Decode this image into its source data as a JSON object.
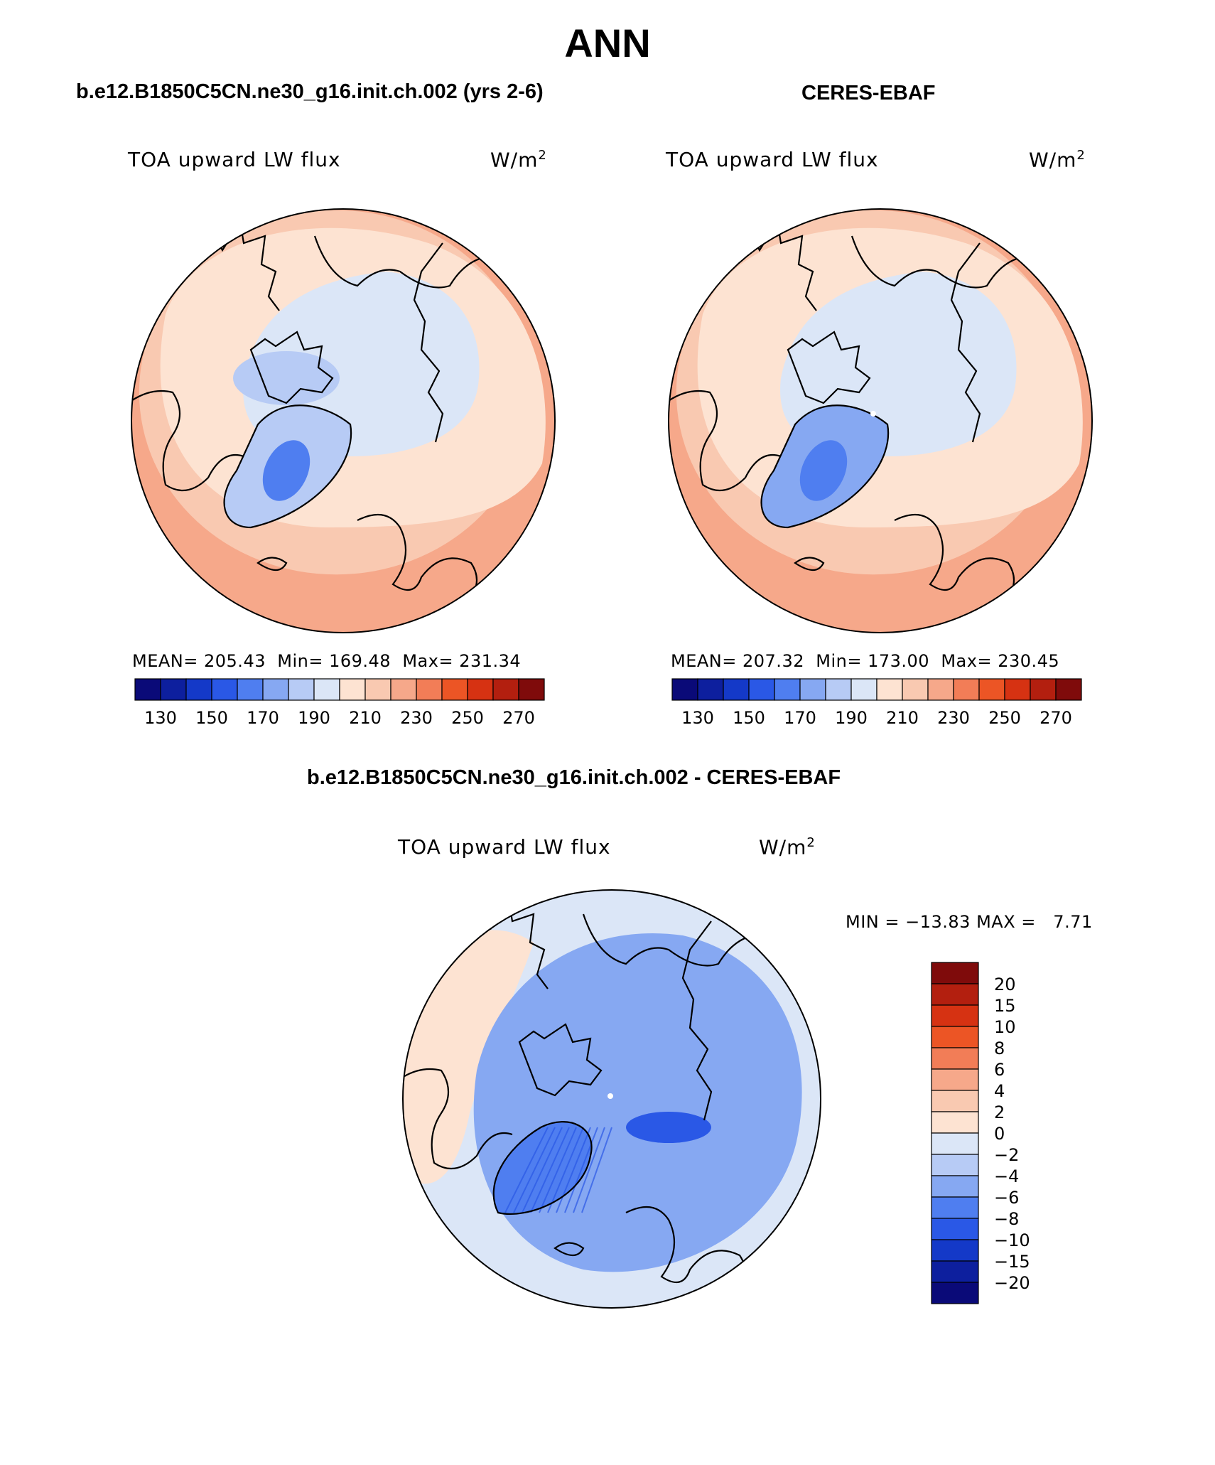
{
  "page": {
    "title": "ANN",
    "left_title": "b.e12.B1850C5CN.ne30_g16.init.ch.002 (yrs 2-6)",
    "right_title": "CERES-EBAF",
    "diff_title": "b.e12.B1850C5CN.ne30_g16.init.ch.002 - CERES-EBAF"
  },
  "colors": {
    "abs_scale": [
      "#0a0a78",
      "#0d1f9e",
      "#1439c8",
      "#2a58e6",
      "#4f7ef0",
      "#86a8f2",
      "#b7cbf5",
      "#dbe6f7",
      "#fde3d2",
      "#f9c9b1",
      "#f6a88a",
      "#f27d57",
      "#ec5525",
      "#d63212",
      "#b31f0f",
      "#7f0b0b"
    ],
    "diff_scale": [
      "#0a0a78",
      "#0d1f9e",
      "#1439c8",
      "#2a58e6",
      "#4f7ef0",
      "#86a8f2",
      "#b7cbf5",
      "#dbe6f7",
      "#fde3d2",
      "#f9c9b1",
      "#f6a88a",
      "#f27d57",
      "#ec5525",
      "#d63212",
      "#b31f0f",
      "#7f0b0b"
    ]
  },
  "chart_data": [
    {
      "type": "polar-contour-map",
      "id": "model",
      "label": "TOA upward LW flux",
      "units": "W/m",
      "units_sup": "2",
      "stats": {
        "mean_label": "MEAN=",
        "mean": "205.43",
        "min_label": "Min=",
        "min": "169.48",
        "max_label": "Max=",
        "max": "231.34"
      },
      "colorbar_ticks": [
        "130",
        "150",
        "170",
        "190",
        "210",
        "230",
        "250",
        "270"
      ],
      "regions": [
        {
          "name": "outer-ring",
          "level": 10
        },
        {
          "name": "mid-ring",
          "level": 9
        },
        {
          "name": "inner-ring",
          "level": 8
        },
        {
          "name": "arctic-ocean",
          "level": 7
        },
        {
          "name": "greenland",
          "level": 6
        },
        {
          "name": "greenland-core",
          "level": 4
        },
        {
          "name": "canadian-archipelago",
          "level": 6
        }
      ]
    },
    {
      "type": "polar-contour-map",
      "id": "obs",
      "label": "TOA upward LW flux",
      "units": "W/m",
      "units_sup": "2",
      "stats": {
        "mean_label": "MEAN=",
        "mean": "207.32",
        "min_label": "Min=",
        "min": "173.00",
        "max_label": "Max=",
        "max": "230.45"
      },
      "colorbar_ticks": [
        "130",
        "150",
        "170",
        "190",
        "210",
        "230",
        "250",
        "270"
      ],
      "regions": [
        {
          "name": "outer-ring",
          "level": 10
        },
        {
          "name": "mid-ring",
          "level": 9
        },
        {
          "name": "inner-ring",
          "level": 8
        },
        {
          "name": "arctic-ocean",
          "level": 7
        },
        {
          "name": "greenland",
          "level": 5
        },
        {
          "name": "greenland-core",
          "level": 4
        }
      ]
    },
    {
      "type": "polar-contour-map",
      "id": "diff",
      "label": "TOA upward LW flux",
      "units": "W/m",
      "units_sup": "2",
      "stats": {
        "min_label": "MIN =",
        "min": "−13.83",
        "max_label": "MAX =",
        "max": "7.71"
      },
      "colorbar_ticks": [
        "20",
        "15",
        "10",
        "8",
        "6",
        "4",
        "2",
        "0",
        "−2",
        "−4",
        "−6",
        "−8",
        "−10",
        "−15",
        "−20"
      ],
      "regions": [
        {
          "name": "outer-ring",
          "level": 7
        },
        {
          "name": "eurasia-warm",
          "level": 8
        },
        {
          "name": "central-arctic",
          "level": 5
        },
        {
          "name": "barents-deep",
          "level": 3
        },
        {
          "name": "greenland-stripes",
          "level": 4
        }
      ]
    }
  ]
}
